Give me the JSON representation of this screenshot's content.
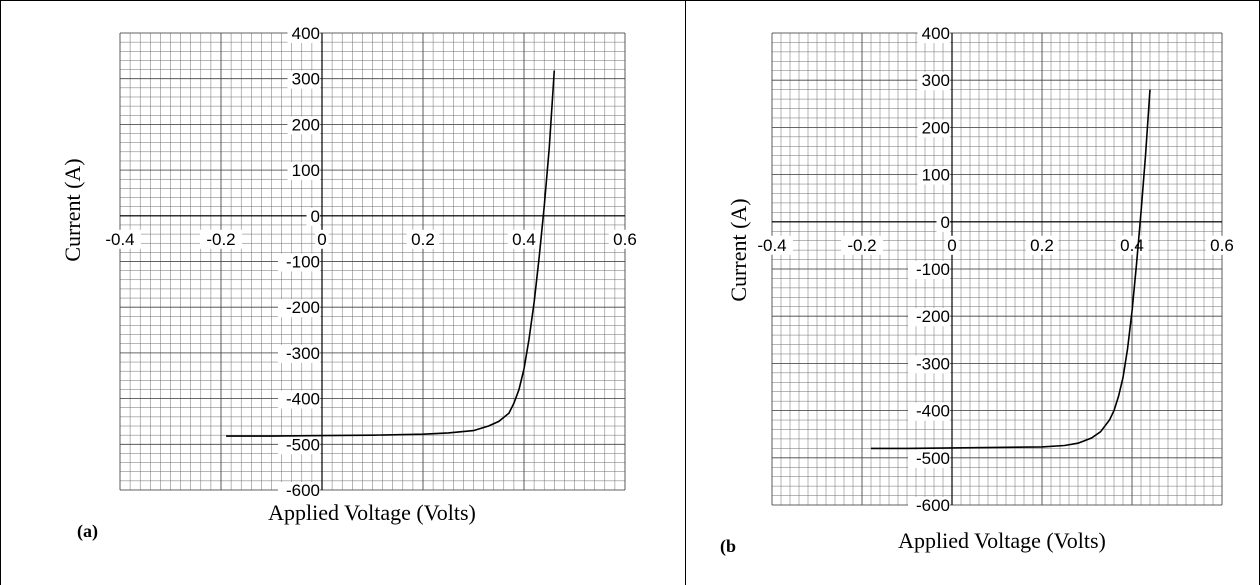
{
  "chart_data": [
    {
      "type": "line",
      "panel_label": "(a)",
      "xlabel": "Applied Voltage (Volts)",
      "ylabel": "Current (A)",
      "xlim": [
        -0.4,
        0.6
      ],
      "ylim": [
        -600,
        400
      ],
      "xticks": [
        "-0.4",
        "-0.2",
        "0",
        "0.2",
        "0.4",
        "0.6"
      ],
      "yticks": [
        "400",
        "300",
        "200",
        "100",
        "0",
        "-100",
        "-200",
        "-300",
        "-400",
        "-500",
        "-600"
      ],
      "grid": true,
      "legend": "none",
      "color": "#000000",
      "series": [
        {
          "x": [
            -0.19,
            -0.1,
            0.0,
            0.1,
            0.2,
            0.25,
            0.3,
            0.33,
            0.35,
            0.37,
            0.38,
            0.39,
            0.4,
            0.41,
            0.42,
            0.43,
            0.44,
            0.45,
            0.46
          ],
          "y": [
            -482,
            -482,
            -481,
            -480,
            -478,
            -475,
            -470,
            -460,
            -450,
            -432,
            -410,
            -380,
            -335,
            -270,
            -190,
            -90,
            20,
            150,
            318
          ]
        }
      ]
    },
    {
      "type": "line",
      "panel_label": "(b",
      "xlabel": "Applied Voltage (Volts)",
      "ylabel": "Current (A)",
      "xlim": [
        -0.4,
        0.6
      ],
      "ylim": [
        -600,
        400
      ],
      "xticks": [
        "-0.4",
        "-0.2",
        "0",
        "0.2",
        "0.4",
        "0.6"
      ],
      "yticks": [
        "400",
        "300",
        "200",
        "100",
        "0",
        "-100",
        "-200",
        "-300",
        "-400",
        "-500",
        "-600"
      ],
      "grid": true,
      "legend": "none",
      "color": "#000000",
      "series": [
        {
          "x": [
            -0.18,
            -0.1,
            0.0,
            0.1,
            0.2,
            0.25,
            0.28,
            0.31,
            0.33,
            0.35,
            0.36,
            0.37,
            0.38,
            0.39,
            0.4,
            0.41,
            0.42,
            0.43,
            0.44
          ],
          "y": [
            -480,
            -480,
            -479,
            -478,
            -477,
            -474,
            -469,
            -458,
            -445,
            -420,
            -400,
            -370,
            -330,
            -270,
            -190,
            -90,
            20,
            140,
            280
          ]
        }
      ]
    }
  ]
}
